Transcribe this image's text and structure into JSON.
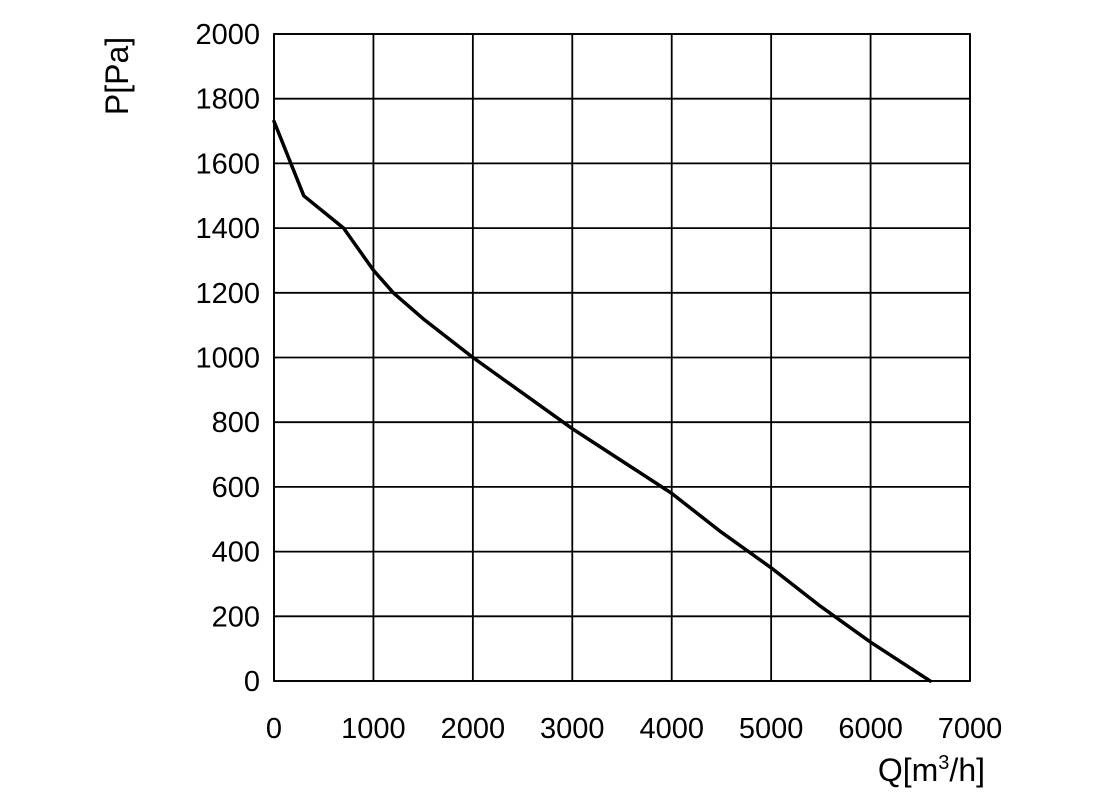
{
  "chart_data": {
    "type": "line",
    "title": "",
    "xlabel": "Q[m",
    "xlabel_sup": "3",
    "xlabel_suffix": "/h]",
    "ylabel": "P[Pa]",
    "xlim": [
      0,
      7000
    ],
    "ylim": [
      0,
      2000
    ],
    "x_ticks": [
      0,
      1000,
      2000,
      3000,
      4000,
      5000,
      6000,
      7000
    ],
    "y_ticks": [
      0,
      200,
      400,
      600,
      800,
      1000,
      1200,
      1400,
      1600,
      1800,
      2000
    ],
    "x_tick_labels": [
      "0",
      "1000",
      "2000",
      "3000",
      "4000",
      "5000",
      "6000",
      "7000"
    ],
    "y_tick_labels": [
      "0",
      "200",
      "400",
      "600",
      "800",
      "1000",
      "1200",
      "1400",
      "1600",
      "1800",
      "2000"
    ],
    "grid": true,
    "legend": "none",
    "line_color": "#000000",
    "series": [
      {
        "x": [
          0,
          300,
          700,
          1000,
          1200,
          1500,
          2000,
          2500,
          3000,
          3200,
          3800,
          4000,
          4500,
          5000,
          5500,
          6000,
          6600
        ],
        "y": [
          1730,
          1500,
          1400,
          1270,
          1200,
          1120,
          1000,
          890,
          780,
          740,
          620,
          580,
          460,
          350,
          230,
          120,
          0
        ]
      }
    ]
  }
}
